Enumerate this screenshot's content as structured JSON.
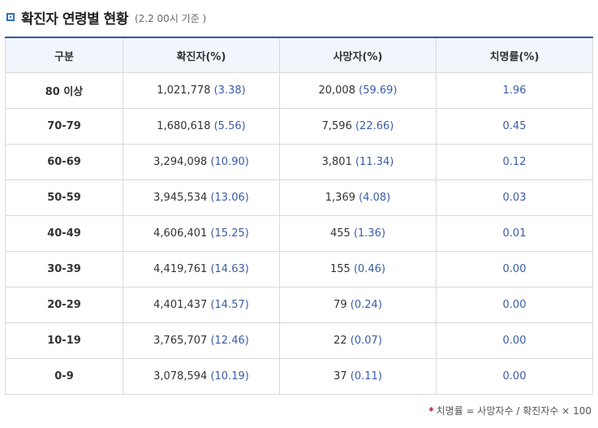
{
  "title": "확진자 연령별 현황",
  "subtitle": "(2.2 00시 기준 )",
  "headers": [
    "구분",
    "확진자(%)",
    "사망자(%)",
    "치명률(%)"
  ],
  "rows": [
    {
      "age": "80 이상",
      "cases": "1,021,778",
      "cases_pct": "(3.38)",
      "deaths": "20,008",
      "deaths_pct": "(59.69)",
      "rate": "1.96"
    },
    {
      "age": "70-79",
      "cases": "1,680,618",
      "cases_pct": "(5.56)",
      "deaths": "7,596",
      "deaths_pct": "(22.66)",
      "rate": "0.45"
    },
    {
      "age": "60-69",
      "cases": "3,294,098",
      "cases_pct": "(10.90)",
      "deaths": "3,801",
      "deaths_pct": "(11.34)",
      "rate": "0.12"
    },
    {
      "age": "50-59",
      "cases": "3,945,534",
      "cases_pct": "(13.06)",
      "deaths": "1,369",
      "deaths_pct": "(4.08)",
      "rate": "0.03"
    },
    {
      "age": "40-49",
      "cases": "4,606,401",
      "cases_pct": "(15.25)",
      "deaths": "455",
      "deaths_pct": "(1.36)",
      "rate": "0.01"
    },
    {
      "age": "30-39",
      "cases": "4,419,761",
      "cases_pct": "(14.63)",
      "deaths": "155",
      "deaths_pct": "(0.46)",
      "rate": "0.00"
    },
    {
      "age": "20-29",
      "cases": "4,401,437",
      "cases_pct": "(14.57)",
      "deaths": "79",
      "deaths_pct": "(0.24)",
      "rate": "0.00"
    },
    {
      "age": "10-19",
      "cases": "3,765,707",
      "cases_pct": "(12.46)",
      "deaths": "22",
      "deaths_pct": "(0.07)",
      "rate": "0.00"
    },
    {
      "age": "0-9",
      "cases": "3,078,594",
      "cases_pct": "(10.19)",
      "deaths": "37",
      "deaths_pct": "(0.11)",
      "rate": "0.00"
    }
  ],
  "footnote_star": "*",
  "footnote": "치명률 = 사망자수 / 확진자수 × 100",
  "colors": {
    "accent": "#2d5aa8",
    "header_bg": "#f1f6fc",
    "pct_text": "#3b5ca8",
    "star": "#d0021b"
  }
}
